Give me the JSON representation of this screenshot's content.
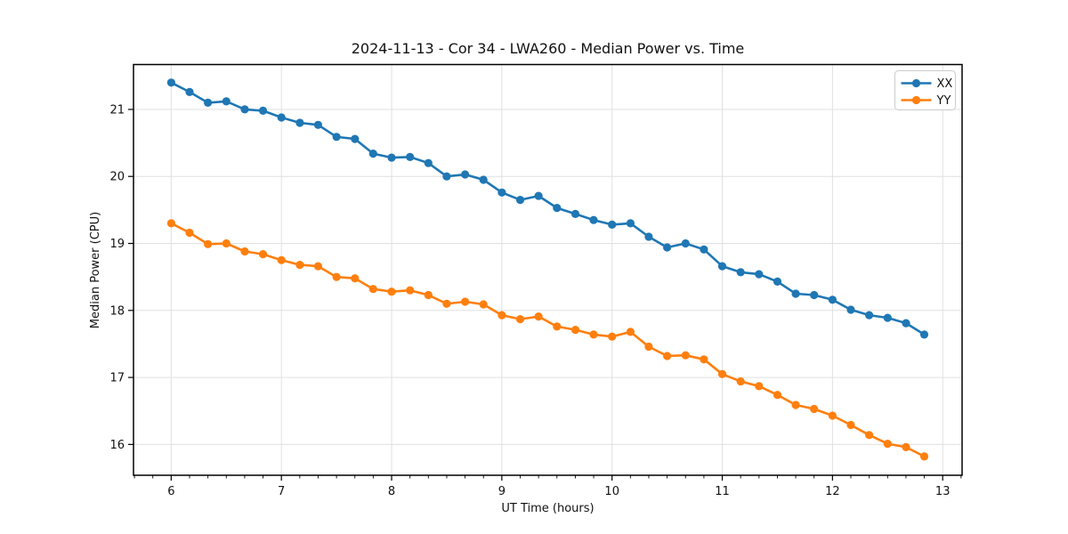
{
  "chart_data": {
    "type": "line",
    "title": "2024-11-13 - Cor 34 - LWA260 - Median Power vs. Time",
    "xlabel": "UT Time (hours)",
    "ylabel": "Median Power (CPU)",
    "legend_position": "upper right",
    "grid": true,
    "xlim": [
      5.658,
      13.176
    ],
    "ylim": [
      15.54,
      21.67
    ],
    "xticks": [
      6,
      7,
      8,
      9,
      10,
      11,
      12,
      13
    ],
    "yticks": [
      16,
      17,
      18,
      19,
      20,
      21
    ],
    "x_minor_interval": 0.1667,
    "x": [
      6.0,
      6.167,
      6.333,
      6.5,
      6.667,
      6.833,
      7.0,
      7.167,
      7.333,
      7.5,
      7.667,
      7.833,
      8.0,
      8.167,
      8.333,
      8.5,
      8.667,
      8.833,
      9.0,
      9.167,
      9.333,
      9.5,
      9.667,
      9.833,
      10.0,
      10.167,
      10.333,
      10.5,
      10.667,
      10.833,
      11.0,
      11.167,
      11.333,
      11.5,
      11.667,
      11.833,
      12.0,
      12.167,
      12.333,
      12.5,
      12.667,
      12.833
    ],
    "series": [
      {
        "name": "XX",
        "color": "#1f77b4",
        "marker": "circle",
        "values": [
          21.4,
          21.26,
          21.1,
          21.12,
          21.0,
          20.98,
          20.88,
          20.8,
          20.77,
          20.59,
          20.56,
          20.34,
          20.28,
          20.29,
          20.2,
          20.0,
          20.03,
          19.95,
          19.76,
          19.65,
          19.71,
          19.53,
          19.44,
          19.35,
          19.28,
          19.3,
          19.1,
          18.94,
          19.0,
          18.91,
          18.66,
          18.57,
          18.54,
          18.43,
          18.25,
          18.23,
          18.16,
          18.01,
          17.93,
          17.89,
          17.81,
          17.64
        ]
      },
      {
        "name": "YY",
        "color": "#ff7f0e",
        "marker": "circle",
        "values": [
          19.3,
          19.16,
          18.99,
          19.0,
          18.88,
          18.84,
          18.75,
          18.68,
          18.66,
          18.5,
          18.48,
          18.32,
          18.28,
          18.3,
          18.23,
          18.1,
          18.13,
          18.09,
          17.93,
          17.87,
          17.91,
          17.76,
          17.71,
          17.64,
          17.61,
          17.68,
          17.46,
          17.32,
          17.33,
          17.27,
          17.05,
          16.94,
          16.87,
          16.74,
          16.59,
          16.53,
          16.43,
          16.29,
          16.14,
          16.01,
          15.96,
          15.82
        ]
      }
    ]
  }
}
